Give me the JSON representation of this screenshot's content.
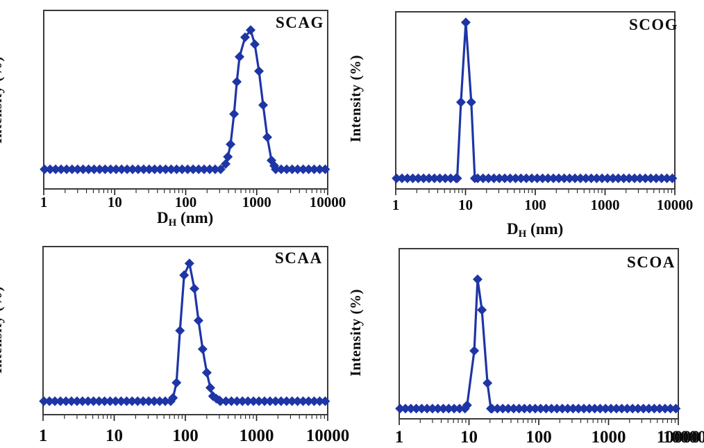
{
  "colors": {
    "series_blue": "#1e35a6",
    "plot_border": "#3a3a3a",
    "tick": "#1c1c1c",
    "text": "#0b0b0b",
    "background": "#ffffff"
  },
  "axis": {
    "y_label": "Intensity (%)",
    "x_label_base": "D",
    "x_label_sub": "H",
    "x_label_rest": " (nm)",
    "x_tick_labels": [
      "1",
      "10",
      "100",
      "1000",
      "10000"
    ]
  },
  "chart_data": [
    {
      "type": "line",
      "title": "SCAG",
      "x_scale": "log",
      "xlim": [
        1,
        10000
      ],
      "ylim": [
        0,
        100
      ],
      "y_ticks_shown": false,
      "grid": false,
      "marker": "diamond",
      "x_tick_labels": [
        "1",
        "10",
        "100",
        "1000",
        "10000"
      ],
      "x_axis_title_shown": true,
      "baseline_intensity": 11,
      "baseline_gap": [
        360,
        1780
      ],
      "peak_points": [
        [
          365,
          14
        ],
        [
          392,
          18
        ],
        [
          428,
          25
        ],
        [
          479,
          42
        ],
        [
          524,
          60
        ],
        [
          573,
          74
        ],
        [
          686,
          85
        ],
        [
          821,
          89
        ],
        [
          940,
          81
        ],
        [
          1076,
          66
        ],
        [
          1231,
          47
        ],
        [
          1410,
          29
        ],
        [
          1614,
          16
        ],
        [
          1766,
          13
        ]
      ]
    },
    {
      "type": "line",
      "title": "SCOG",
      "x_scale": "log",
      "xlim": [
        1,
        10000
      ],
      "ylim": [
        0,
        100
      ],
      "y_ticks_shown": false,
      "grid": false,
      "marker": "diamond",
      "x_tick_labels": [
        "1",
        "10",
        "100",
        "1000",
        "10000"
      ],
      "x_axis_title_shown": true,
      "baseline_intensity": 6,
      "baseline_gap": [
        7.9,
        13.0
      ],
      "peak_points": [
        [
          7.6,
          6
        ],
        [
          8.6,
          49
        ],
        [
          10.1,
          94
        ],
        [
          12.1,
          49
        ],
        [
          13.6,
          6
        ]
      ]
    },
    {
      "type": "line",
      "title": "SCAA",
      "x_scale": "log",
      "xlim": [
        1,
        10000
      ],
      "ylim": [
        0,
        100
      ],
      "y_ticks_shown": false,
      "grid": false,
      "marker": "diamond",
      "x_tick_labels": [
        "1",
        "10",
        "100",
        "1000",
        "10000"
      ],
      "x_axis_title_shown": false,
      "baseline_intensity": 8,
      "baseline_gap": [
        66,
        292
      ],
      "peak_points": [
        [
          67,
          10
        ],
        [
          75,
          19
        ],
        [
          84,
          50
        ],
        [
          96,
          83
        ],
        [
          114,
          90
        ],
        [
          134,
          75
        ],
        [
          153,
          56
        ],
        [
          175,
          39
        ],
        [
          200,
          25
        ],
        [
          224,
          16
        ],
        [
          244,
          11
        ],
        [
          273,
          9.5
        ],
        [
          299,
          8.5
        ]
      ]
    },
    {
      "type": "line",
      "title": "SCOA",
      "x_scale": "log",
      "xlim": [
        1,
        10000
      ],
      "ylim": [
        0,
        100
      ],
      "y_ticks_shown": false,
      "grid": false,
      "marker": "diamond",
      "x_tick_labels": [
        "1",
        "10",
        "100",
        "1000",
        "10000"
      ],
      "x_axis_title_shown": false,
      "corner_label_overlap_artifact": true,
      "baseline_intensity": 6,
      "baseline_gap": [
        9.6,
        20.0
      ],
      "peak_points": [
        [
          9.4,
          8
        ],
        [
          11.9,
          40
        ],
        [
          13.3,
          82
        ],
        [
          15.3,
          64
        ],
        [
          18.4,
          21
        ],
        [
          20.6,
          6
        ]
      ]
    }
  ]
}
